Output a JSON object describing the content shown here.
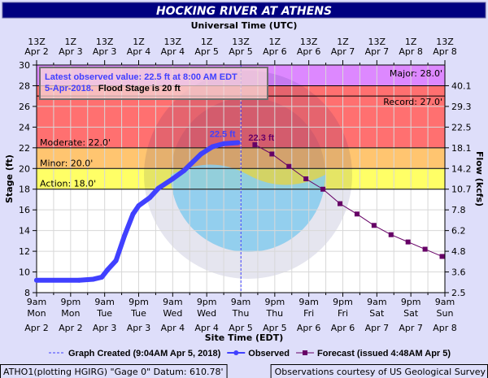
{
  "chart_data": {
    "type": "line",
    "title": "HOCKING RIVER AT ATHENS",
    "top_axis_title": "Universal Time (UTC)",
    "xlabel": "Site Time (EDT)",
    "ylabel": "Stage (ft)",
    "y2label": "Flow (kcfs)",
    "xlim": [
      "2018-04-02T09:00",
      "2018-04-08T09:00"
    ],
    "ylim": [
      8,
      30
    ],
    "grid": true,
    "top_ticks": [
      [
        "13Z",
        "Apr 2"
      ],
      [
        "1Z",
        "Apr 3"
      ],
      [
        "13Z",
        "Apr 3"
      ],
      [
        "1Z",
        "Apr 4"
      ],
      [
        "13Z",
        "Apr 4"
      ],
      [
        "1Z",
        "Apr 5"
      ],
      [
        "13Z",
        "Apr 5"
      ],
      [
        "1Z",
        "Apr 6"
      ],
      [
        "13Z",
        "Apr 6"
      ],
      [
        "1Z",
        "Apr 7"
      ],
      [
        "13Z",
        "Apr 7"
      ],
      [
        "1Z",
        "Apr 8"
      ],
      [
        "13Z",
        "Apr 8"
      ]
    ],
    "bottom_ticks": [
      [
        "9am",
        "Mon",
        "Apr 2"
      ],
      [
        "9pm",
        "Mon",
        "Apr 2"
      ],
      [
        "9am",
        "Tue",
        "Apr 3"
      ],
      [
        "9pm",
        "Tue",
        "Apr 3"
      ],
      [
        "9am",
        "Wed",
        "Apr 4"
      ],
      [
        "9pm",
        "Wed",
        "Apr 4"
      ],
      [
        "9am",
        "Thu",
        "Apr 5"
      ],
      [
        "9pm",
        "Thu",
        "Apr 5"
      ],
      [
        "9am",
        "Fri",
        "Apr 6"
      ],
      [
        "9pm",
        "Fri",
        "Apr 6"
      ],
      [
        "9am",
        "Sat",
        "Apr 7"
      ],
      [
        "9pm",
        "Sat",
        "Apr 7"
      ],
      [
        "9am",
        "Sun",
        "Apr 8"
      ]
    ],
    "y_ticks": [
      8,
      10,
      12,
      14,
      16,
      18,
      20,
      22,
      24,
      26,
      28,
      30
    ],
    "y2_ticks": [
      [
        "2.5",
        8
      ],
      [
        "3.6",
        10
      ],
      [
        "4.8",
        12
      ],
      [
        "6.2",
        14
      ],
      [
        "7.8",
        16
      ],
      [
        "10.7",
        18
      ],
      [
        "14.2",
        20
      ],
      [
        "18.1",
        22
      ],
      [
        "22.5",
        24
      ],
      [
        "29.3",
        26
      ],
      [
        "40.1",
        28
      ]
    ],
    "flood_categories": [
      {
        "label": "Action: 18.0'",
        "from": 18,
        "to": 20,
        "color": "#ffff66"
      },
      {
        "label": "Minor: 20.0'",
        "from": 20,
        "to": 22,
        "color": "#ffc570"
      },
      {
        "label": "Moderate: 22.0'",
        "from": 22,
        "to": 28,
        "color": "#ff7070"
      },
      {
        "label": "Major: 28.0'",
        "from": 28,
        "to": 30,
        "color": "#dd88ff"
      }
    ],
    "record": {
      "label": "Record: 27.0'",
      "value": 27
    },
    "graph_created": "2018-04-05T09:04",
    "series": [
      {
        "name": "Observed",
        "color": "#4040ff",
        "end_label": "22.5 ft",
        "points": [
          [
            "2018-04-02T09:00",
            9.2
          ],
          [
            "2018-04-03T00:00",
            9.2
          ],
          [
            "2018-04-03T05:00",
            9.3
          ],
          [
            "2018-04-03T08:00",
            9.5
          ],
          [
            "2018-04-03T10:00",
            10.2
          ],
          [
            "2018-04-03T13:00",
            11.1
          ],
          [
            "2018-04-03T16:00",
            13.5
          ],
          [
            "2018-04-03T19:00",
            15.6
          ],
          [
            "2018-04-03T21:00",
            16.4
          ],
          [
            "2018-04-04T01:00",
            17.2
          ],
          [
            "2018-04-04T04:00",
            18.1
          ],
          [
            "2018-04-04T09:00",
            19.0
          ],
          [
            "2018-04-04T13:00",
            19.8
          ],
          [
            "2018-04-04T19:00",
            21.4
          ],
          [
            "2018-04-04T23:00",
            22.1
          ],
          [
            "2018-04-05T03:00",
            22.4
          ],
          [
            "2018-04-05T08:00",
            22.5
          ]
        ]
      },
      {
        "name": "Forecast (issued 4:48AM Apr 5)",
        "color": "#660066",
        "start_label": "22.3 ft",
        "points": [
          [
            "2018-04-05T14:00",
            22.3
          ],
          [
            "2018-04-05T20:00",
            21.4
          ],
          [
            "2018-04-06T02:00",
            20.2
          ],
          [
            "2018-04-06T08:00",
            19.0
          ],
          [
            "2018-04-06T14:00",
            18.0
          ],
          [
            "2018-04-06T20:00",
            16.6
          ],
          [
            "2018-04-07T02:00",
            15.6
          ],
          [
            "2018-04-07T08:00",
            14.5
          ],
          [
            "2018-04-07T14:00",
            13.6
          ],
          [
            "2018-04-07T20:00",
            12.9
          ],
          [
            "2018-04-08T02:00",
            12.2
          ],
          [
            "2018-04-08T08:00",
            11.5
          ]
        ]
      }
    ]
  },
  "info_box": {
    "line1": "Latest observed value: 22.5 ft at 8:00 AM EDT",
    "line2a": "5-Apr-2018.",
    "line2b": "Flood Stage is 20 ft"
  },
  "legend": {
    "graph_created": "Graph Created (9:04AM Apr 5, 2018)",
    "observed": "Observed",
    "forecast": "Forecast (issued 4:48AM Apr 5)"
  },
  "footer": {
    "left": "ATHO1(plotting HGIRG) \"Gage 0\" Datum: 610.78'",
    "right": "Observations courtesy of US Geological Survey"
  },
  "colors": {
    "title_bar": "#000080",
    "background": "#dedefa",
    "observed": "#4040ff",
    "forecast": "#660066"
  }
}
